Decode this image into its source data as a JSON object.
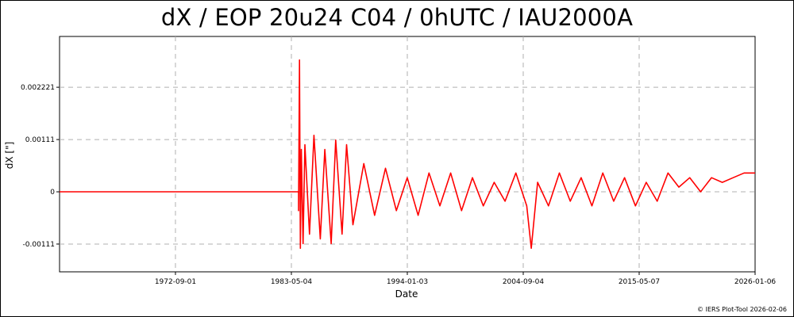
{
  "title": "dX / EOP 20u24 C04 / 0hUTC / IAU2000A",
  "credit": "© IERS Plot-Tool 2026-02-06",
  "colors": {
    "series": "#ff0000",
    "grid": "#b0b0b0",
    "axis": "#000000"
  },
  "chart_data": {
    "type": "line",
    "title": "dX / EOP 20u24 C04 / 0hUTC / IAU2000A",
    "xlabel": "Date",
    "ylabel": "dX [\"]",
    "x_ticks": [
      "1972-09-01",
      "1983-05-04",
      "1994-01-03",
      "2004-09-04",
      "2015-05-07",
      "2026-01-06"
    ],
    "y_ticks": [
      "0.002221",
      "0.00111",
      "0",
      "-0.00111"
    ],
    "y_tick_values": [
      0.002221,
      0.00111,
      0,
      -0.00111
    ],
    "xlim": [
      "1962-01-01",
      "2026-01-06"
    ],
    "ylim": [
      -0.0017,
      0.0033
    ],
    "grid": true,
    "legend": "none",
    "series": [
      {
        "x": [
          "1962-01-01",
          "1983-12-31",
          "1984-01-01",
          "1984-02-01",
          "1984-03-01",
          "1984-04-01",
          "1984-06-01",
          "1984-08-01",
          "1985-01-01",
          "1985-06-01",
          "1986-01-01",
          "1986-06-01",
          "1987-01-01",
          "1987-06-01",
          "1988-01-01",
          "1988-06-01",
          "1989-01-01",
          "1990-01-01",
          "1991-01-01",
          "1992-01-01",
          "1993-01-01",
          "1994-01-01",
          "1995-01-01",
          "1996-01-01",
          "1997-01-01",
          "1998-01-01",
          "1999-01-01",
          "2000-01-01",
          "2001-01-01",
          "2002-01-01",
          "2003-01-01",
          "2004-01-01",
          "2005-01-01",
          "2005-06-01",
          "2006-01-01",
          "2007-01-01",
          "2008-01-01",
          "2009-01-01",
          "2010-01-01",
          "2011-01-01",
          "2012-01-01",
          "2013-01-01",
          "2014-01-01",
          "2015-01-01",
          "2016-01-01",
          "2017-01-01",
          "2018-01-01",
          "2019-01-01",
          "2020-01-01",
          "2021-01-01",
          "2022-01-01",
          "2023-01-01",
          "2024-01-01",
          "2025-01-01",
          "2026-01-06"
        ],
        "y": [
          0,
          0,
          -0.0004,
          0.0028,
          -0.0012,
          0.0009,
          -0.0011,
          0.001,
          -0.0009,
          0.0012,
          -0.001,
          0.0009,
          -0.0011,
          0.0011,
          -0.0009,
          0.001,
          -0.0007,
          0.0006,
          -0.0005,
          0.0005,
          -0.0004,
          0.0003,
          -0.0005,
          0.0004,
          -0.0003,
          0.0004,
          -0.0004,
          0.0003,
          -0.0003,
          0.0002,
          -0.0002,
          0.0004,
          -0.0003,
          -0.0012,
          0.0002,
          -0.0003,
          0.0004,
          -0.0002,
          0.0003,
          -0.0003,
          0.0004,
          -0.0002,
          0.0003,
          -0.0003,
          0.0002,
          -0.0002,
          0.0004,
          0.0001,
          0.0003,
          0.0,
          0.0003,
          0.0002,
          0.0003,
          0.0004,
          0.0004
        ]
      }
    ]
  }
}
